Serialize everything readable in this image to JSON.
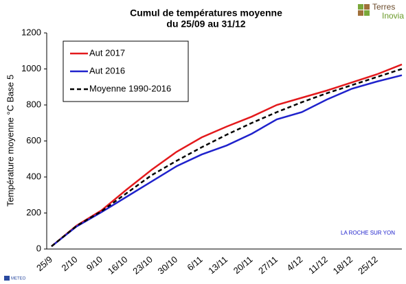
{
  "chart_data": {
    "type": "line",
    "title": [
      "Cumul de températures moyenne",
      "du 25/09 au 31/12"
    ],
    "y_label": "Température moyenne °C Base 5",
    "annotation": "LA ROCHE SUR YON",
    "logo": [
      "Terres",
      "Inovia"
    ],
    "footer_logo": "METEO",
    "categories": [
      "25/9",
      "2/10",
      "9/10",
      "16/10",
      "23/10",
      "30/10",
      "6/11",
      "13/11",
      "20/11",
      "27/11",
      "4/12",
      "11/12",
      "18/12",
      "25/12",
      null
    ],
    "series": [
      {
        "name": "Aut 2017",
        "color": "#e3191c",
        "style": "solid",
        "values": [
          15,
          130,
          215,
          330,
          440,
          540,
          620,
          680,
          735,
          800,
          840,
          880,
          925,
          970,
          1025
        ]
      },
      {
        "name": "Aut 2016",
        "color": "#1f22cc",
        "style": "solid",
        "values": [
          15,
          125,
          205,
          290,
          375,
          460,
          525,
          575,
          640,
          720,
          760,
          830,
          890,
          930,
          965
        ]
      },
      {
        "name": "Moyenne 1990-2016",
        "color": "#000000",
        "style": "dashed",
        "values": [
          15,
          128,
          210,
          310,
          410,
          490,
          565,
          635,
          700,
          760,
          815,
          865,
          910,
          955,
          1000
        ]
      }
    ],
    "ylim": [
      0,
      1200
    ],
    "yticks": [
      0,
      200,
      400,
      600,
      800,
      1000,
      1200
    ],
    "grid": false,
    "legend": "top-left"
  }
}
